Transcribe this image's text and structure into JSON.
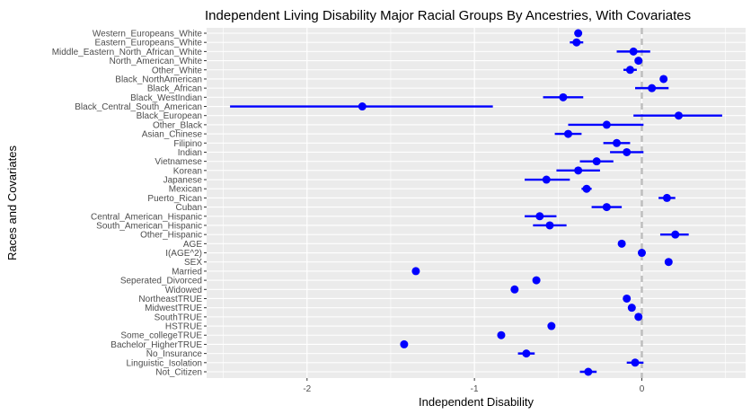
{
  "chart_data": {
    "type": "scatter",
    "title": "Independent Living Disability Major Racial Groups By Ancestries, With Covariates",
    "xlabel": "Independent Disability",
    "ylabel": "Races and Covariates",
    "xlim": [
      -2.6,
      0.62
    ],
    "x_ticks": [
      "-2",
      "-1",
      "0"
    ],
    "reference_line_x": 0,
    "grid": true,
    "colors": {
      "panel_background": "#ebebeb",
      "grid": "#ffffff",
      "point": "#0000ff",
      "reference_line": "#bebebe",
      "text": "#000000",
      "tick_text": "#4d4d4d"
    },
    "points": [
      {
        "label": "Western_Europeans_White",
        "estimate": -0.38,
        "low": -0.38,
        "high": -0.38
      },
      {
        "label": "Eastern_Europeans_White",
        "estimate": -0.39,
        "low": -0.43,
        "high": -0.35
      },
      {
        "label": "Middle_Eastern_North_African_White",
        "estimate": -0.05,
        "low": -0.15,
        "high": 0.05
      },
      {
        "label": "North_American_White",
        "estimate": -0.02,
        "low": -0.02,
        "high": -0.02
      },
      {
        "label": "Other_White",
        "estimate": -0.07,
        "low": -0.11,
        "high": -0.03
      },
      {
        "label": "Black_NorthAmerican",
        "estimate": 0.13,
        "low": 0.11,
        "high": 0.15
      },
      {
        "label": "Black_African",
        "estimate": 0.06,
        "low": -0.04,
        "high": 0.16
      },
      {
        "label": "Black_WestIndian",
        "estimate": -0.47,
        "low": -0.59,
        "high": -0.35
      },
      {
        "label": "Black_Central_South_American",
        "estimate": -1.67,
        "low": -2.46,
        "high": -0.89
      },
      {
        "label": "Black_European",
        "estimate": 0.22,
        "low": -0.05,
        "high": 0.48
      },
      {
        "label": "Other_Black",
        "estimate": -0.21,
        "low": -0.44,
        "high": 0.01
      },
      {
        "label": "Asian_Chinese",
        "estimate": -0.44,
        "low": -0.52,
        "high": -0.36
      },
      {
        "label": "Filipino",
        "estimate": -0.15,
        "low": -0.23,
        "high": -0.07
      },
      {
        "label": "Indian",
        "estimate": -0.09,
        "low": -0.19,
        "high": 0.01
      },
      {
        "label": "Vietnamese",
        "estimate": -0.27,
        "low": -0.37,
        "high": -0.17
      },
      {
        "label": "Korean",
        "estimate": -0.38,
        "low": -0.51,
        "high": -0.25
      },
      {
        "label": "Japanese",
        "estimate": -0.57,
        "low": -0.7,
        "high": -0.43
      },
      {
        "label": "Mexican",
        "estimate": -0.33,
        "low": -0.36,
        "high": -0.3
      },
      {
        "label": "Puerto_Rican",
        "estimate": 0.15,
        "low": 0.1,
        "high": 0.2
      },
      {
        "label": "Cuban",
        "estimate": -0.21,
        "low": -0.3,
        "high": -0.12
      },
      {
        "label": "Central_American_Hispanic",
        "estimate": -0.61,
        "low": -0.7,
        "high": -0.51
      },
      {
        "label": "South_American_Hispanic",
        "estimate": -0.55,
        "low": -0.65,
        "high": -0.45
      },
      {
        "label": "Other_Hispanic",
        "estimate": 0.2,
        "low": 0.11,
        "high": 0.28
      },
      {
        "label": "AGE",
        "estimate": -0.12,
        "low": -0.12,
        "high": -0.12
      },
      {
        "label": "I(AGE^2)",
        "estimate": 0.0,
        "low": 0.0,
        "high": 0.0
      },
      {
        "label": "SEX",
        "estimate": 0.16,
        "low": 0.16,
        "high": 0.16
      },
      {
        "label": "Married",
        "estimate": -1.35,
        "low": -1.35,
        "high": -1.35
      },
      {
        "label": "Seperated_Divorced",
        "estimate": -0.63,
        "low": -0.63,
        "high": -0.63
      },
      {
        "label": "Widowed",
        "estimate": -0.76,
        "low": -0.78,
        "high": -0.74
      },
      {
        "label": "NortheastTRUE",
        "estimate": -0.09,
        "low": -0.09,
        "high": -0.09
      },
      {
        "label": "MidwestTRUE",
        "estimate": -0.06,
        "low": -0.06,
        "high": -0.06
      },
      {
        "label": "SouthTRUE",
        "estimate": -0.02,
        "low": -0.02,
        "high": -0.02
      },
      {
        "label": "HSTRUE",
        "estimate": -0.54,
        "low": -0.54,
        "high": -0.54
      },
      {
        "label": "Some_collegeTRUE",
        "estimate": -0.84,
        "low": -0.84,
        "high": -0.84
      },
      {
        "label": "Bachelor_HigherTRUE",
        "estimate": -1.42,
        "low": -1.42,
        "high": -1.42
      },
      {
        "label": "No_Insurance",
        "estimate": -0.69,
        "low": -0.74,
        "high": -0.64
      },
      {
        "label": "Linguistic_Isolation",
        "estimate": -0.04,
        "low": -0.09,
        "high": 0.01
      },
      {
        "label": "Not_Citizen",
        "estimate": -0.32,
        "low": -0.37,
        "high": -0.27
      }
    ]
  }
}
